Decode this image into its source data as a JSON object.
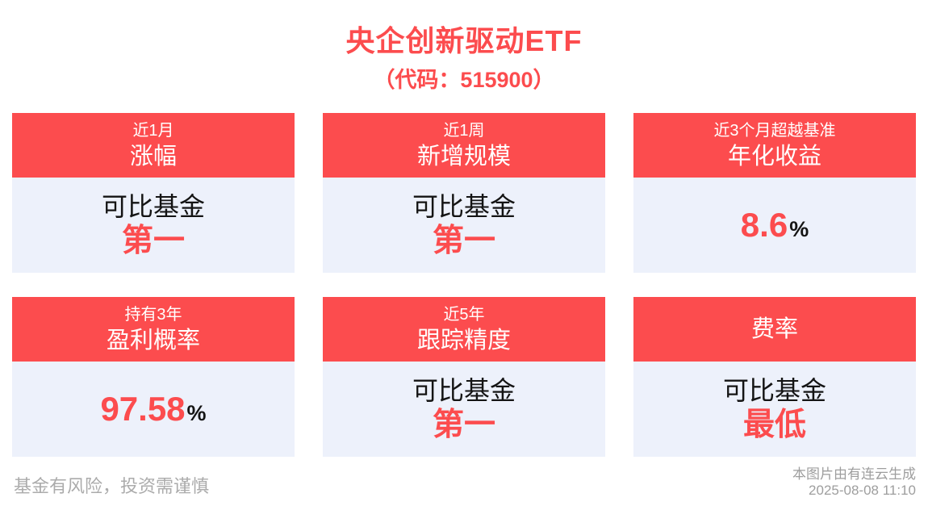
{
  "colors": {
    "accent_red": "#FC4C4E",
    "card_body_bg": "#EDF1FB",
    "header_text": "#FFFFFF",
    "dark_text": "#141414",
    "muted_left": "#ABABAB",
    "muted_right": "#9E9E9E",
    "page_bg": "#FFFFFF"
  },
  "header": {
    "title": "央企创新驱动ETF",
    "subtitle": "（代码：515900）"
  },
  "cards": [
    {
      "tag": "近1月",
      "metric": "涨幅",
      "prefix": "可比基金",
      "value": "第一"
    },
    {
      "tag": "近1周",
      "metric": "新增规模",
      "prefix": "可比基金",
      "value": "第一"
    },
    {
      "tag": "近3个月超越基准",
      "metric": "年化收益",
      "value": "8.6",
      "unit": "%"
    },
    {
      "tag": "持有3年",
      "metric": "盈利概率",
      "value": "97.58",
      "unit": "%"
    },
    {
      "tag": "近5年",
      "metric": "跟踪精度",
      "prefix": "可比基金",
      "value": "第一"
    },
    {
      "metric": "费率",
      "prefix": "可比基金",
      "value": "最低"
    }
  ],
  "footer": {
    "disclaimer": "基金有风险，投资需谨慎",
    "source": "本图片由有连云生成",
    "timestamp": "2025-08-08 11:10"
  }
}
